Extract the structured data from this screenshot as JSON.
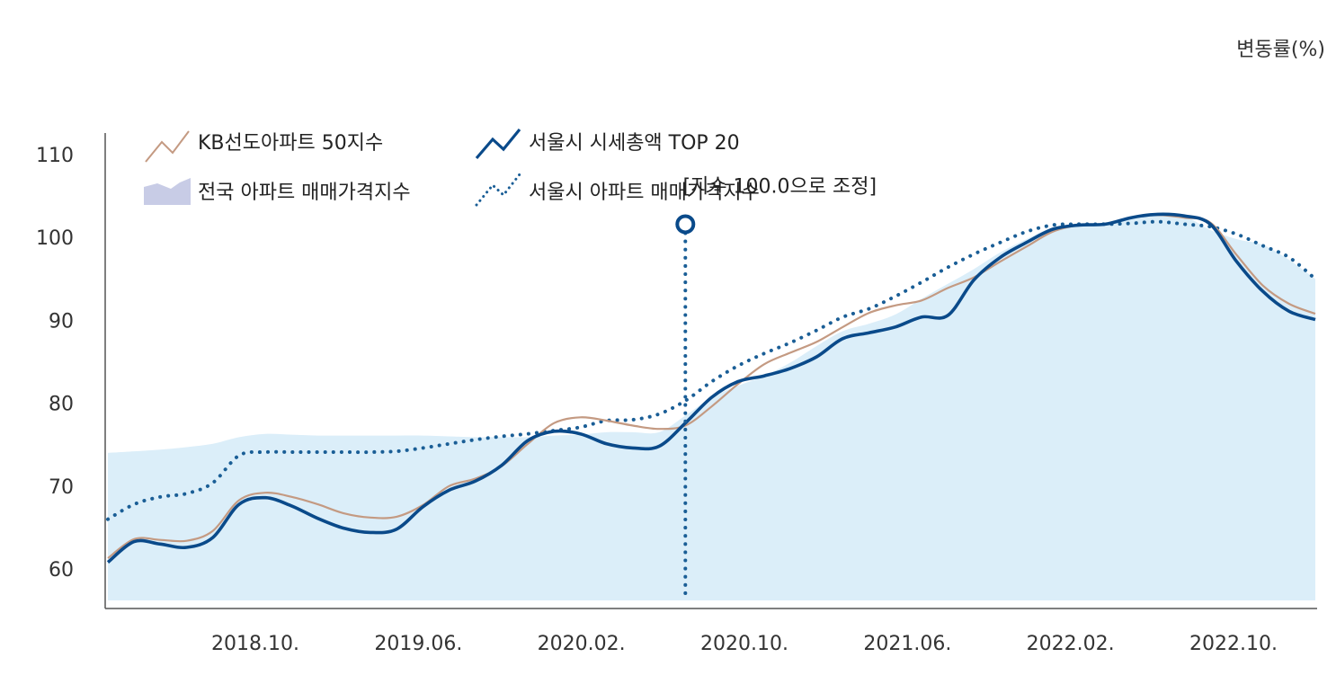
{
  "chart_data": {
    "type": "line",
    "title": "",
    "ylabel": "변동률(%)",
    "ylim": [
      55,
      110
    ],
    "yticks": [
      60,
      70,
      80,
      90,
      100,
      110
    ],
    "x_tick_labels": [
      "2018.10.",
      "2019.06.",
      "2020.02.",
      "2020.10.",
      "2021.06.",
      "2022.02.",
      "2022.10."
    ],
    "annotation": {
      "label": "[지수 100.0으로 조정]",
      "x_index": 22,
      "value": 101.6
    },
    "colors": {
      "kb50": "#c49a82",
      "seoul_top20": "#0a4a8a",
      "seoul_apt": "#1a5e96",
      "national_fill": "#dbeef9"
    },
    "legend": [
      {
        "name": "KB선도아파트 50지수",
        "style": "line",
        "color": "#c49a82"
      },
      {
        "name": "서울시 시세총액 TOP 20",
        "style": "line",
        "color": "#0a4a8a"
      },
      {
        "name": "전국 아파트 매매가격지수",
        "style": "area",
        "color": "#c8cce6"
      },
      {
        "name": "서울시 아파트 매매가격지수",
        "style": "dotted",
        "color": "#1a5e96"
      }
    ],
    "series": [
      {
        "name": "KB선도아파트 50지수",
        "values": [
          61.3,
          63.6,
          63.5,
          63.4,
          64.6,
          68.3,
          69.2,
          68.7,
          67.8,
          66.7,
          66.2,
          66.3,
          67.7,
          70.0,
          70.9,
          72.4,
          75.1,
          77.6,
          78.3,
          77.9,
          77.3,
          76.9,
          77.3,
          79.6,
          82.3,
          84.7,
          86.1,
          87.4,
          89.2,
          90.9,
          91.8,
          92.4,
          93.9,
          95.2,
          97.1,
          98.9,
          100.7,
          101.5,
          101.6,
          102.4,
          102.7,
          102.4,
          101.8,
          97.9,
          94.2,
          92.0,
          90.8
        ]
      },
      {
        "name": "서울시 시세총액 TOP 20",
        "values": [
          60.8,
          63.3,
          63.0,
          62.6,
          63.8,
          67.8,
          68.6,
          67.6,
          66.1,
          64.9,
          64.4,
          64.8,
          67.5,
          69.5,
          70.6,
          72.5,
          75.5,
          76.6,
          76.3,
          75.1,
          74.6,
          74.8,
          77.6,
          80.7,
          82.6,
          83.3,
          84.2,
          85.6,
          87.8,
          88.5,
          89.2,
          90.4,
          90.6,
          94.9,
          97.6,
          99.4,
          101.0,
          101.5,
          101.6,
          102.4,
          102.8,
          102.6,
          101.6,
          97.1,
          93.5,
          91.1,
          90.1
        ]
      },
      {
        "name": "서울시 아파트 매매가격지수",
        "values": [
          66.0,
          67.8,
          68.7,
          69.1,
          70.4,
          73.7,
          74.1,
          74.1,
          74.1,
          74.1,
          74.1,
          74.2,
          74.6,
          75.1,
          75.6,
          76.0,
          76.3,
          76.7,
          77.1,
          77.9,
          78.0,
          78.7,
          80.3,
          82.6,
          84.5,
          86.0,
          87.3,
          88.8,
          90.4,
          91.4,
          92.9,
          94.6,
          96.4,
          98.0,
          99.4,
          100.7,
          101.5,
          101.6,
          101.6,
          101.7,
          101.9,
          101.6,
          101.3,
          100.4,
          99.0,
          97.6,
          95.0
        ]
      },
      {
        "name": "전국 아파트 매매가격지수",
        "values": [
          74.0,
          74.2,
          74.4,
          74.7,
          75.1,
          75.9,
          76.3,
          76.2,
          76.1,
          76.1,
          76.1,
          76.1,
          76.1,
          76.0,
          75.9,
          75.9,
          75.9,
          76.1,
          76.2,
          76.5,
          76.5,
          76.5,
          78.5,
          80.7,
          82.1,
          83.3,
          84.9,
          86.9,
          88.7,
          89.6,
          90.7,
          92.6,
          94.4,
          96.2,
          98.2,
          99.8,
          101.2,
          101.5,
          101.6,
          102.5,
          102.9,
          102.6,
          100.9,
          99.8,
          99.1,
          97.3,
          95.0
        ]
      }
    ]
  }
}
